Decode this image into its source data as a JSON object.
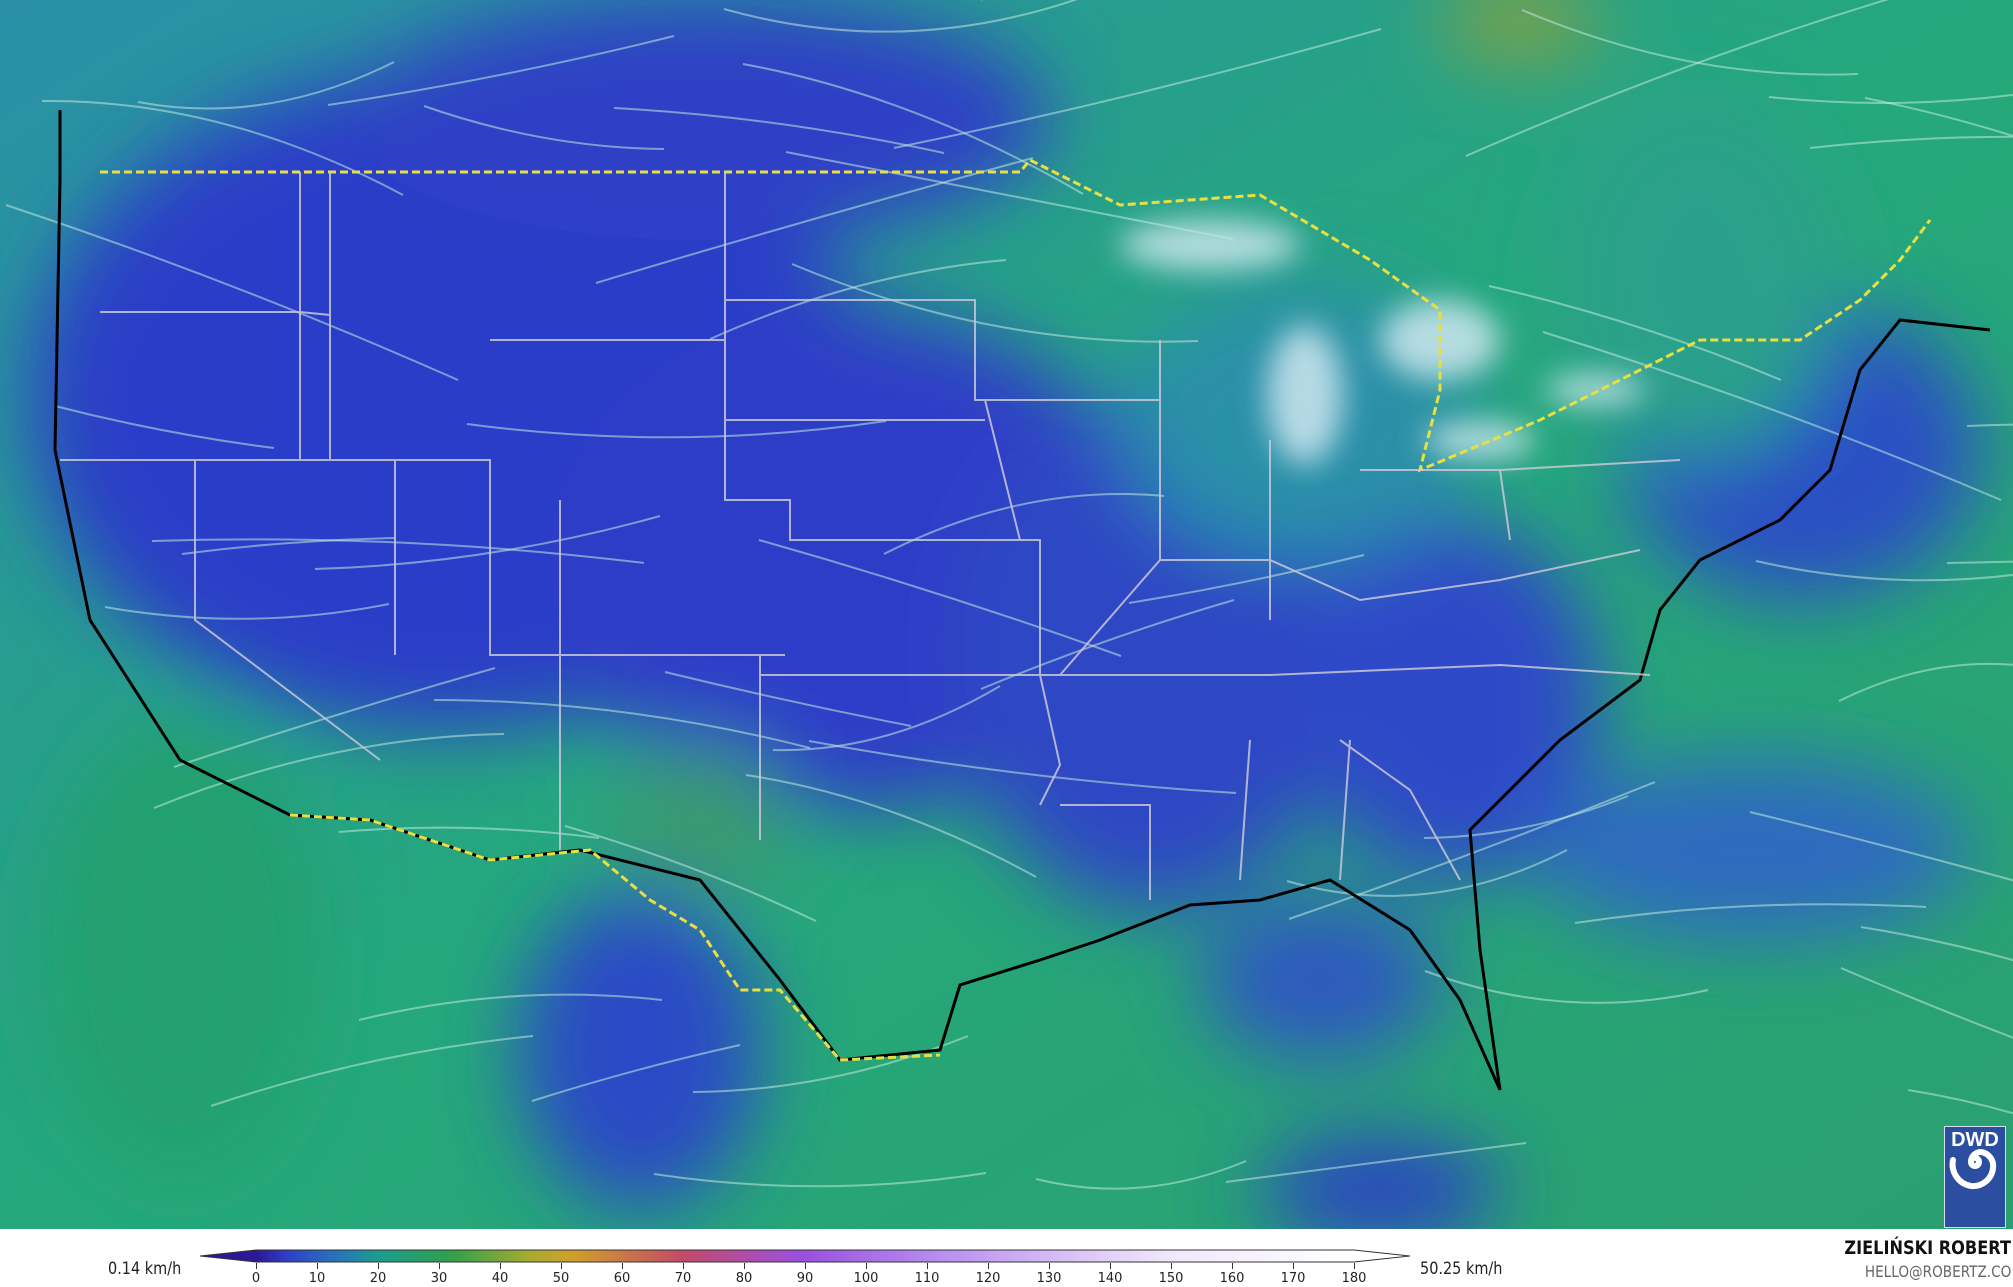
{
  "map": {
    "variable": "wind speed",
    "region": "Contiguous United States",
    "colors": {
      "ocean": "#27a37e",
      "land_low": "#2a3fc8",
      "coast": "#000000",
      "borders": "#c8c8d8",
      "intl_border": "#e8e040"
    }
  },
  "logo": {
    "text": "DWD",
    "icon": "dwd-swirl-icon"
  },
  "colorbar": {
    "min_label": "0.14 km/h",
    "max_label": "50.25 km/h",
    "ticks": [
      "0",
      "10",
      "20",
      "30",
      "40",
      "50",
      "60",
      "70",
      "80",
      "90",
      "100",
      "110",
      "120",
      "130",
      "140",
      "150",
      "160",
      "170",
      "180"
    ],
    "stops": [
      {
        "v": 0,
        "c": "#2a1896"
      },
      {
        "v": 5,
        "c": "#2e3ec4"
      },
      {
        "v": 12,
        "c": "#2a6cc0"
      },
      {
        "v": 20,
        "c": "#1c9c90"
      },
      {
        "v": 32,
        "c": "#2fa04c"
      },
      {
        "v": 45,
        "c": "#a8aa30"
      },
      {
        "v": 52,
        "c": "#d0a02c"
      },
      {
        "v": 62,
        "c": "#c8704c"
      },
      {
        "v": 70,
        "c": "#c24a68"
      },
      {
        "v": 80,
        "c": "#b04ca8"
      },
      {
        "v": 90,
        "c": "#9a50e0"
      },
      {
        "v": 110,
        "c": "#b488ee"
      },
      {
        "v": 130,
        "c": "#d4b8f6"
      },
      {
        "v": 150,
        "c": "#f0e8fc"
      },
      {
        "v": 180,
        "c": "#ffffff"
      }
    ]
  },
  "credits": {
    "name": "ZIELIŃSKI ROBERT",
    "email": "HELLO@ROBERTZ.CO"
  }
}
